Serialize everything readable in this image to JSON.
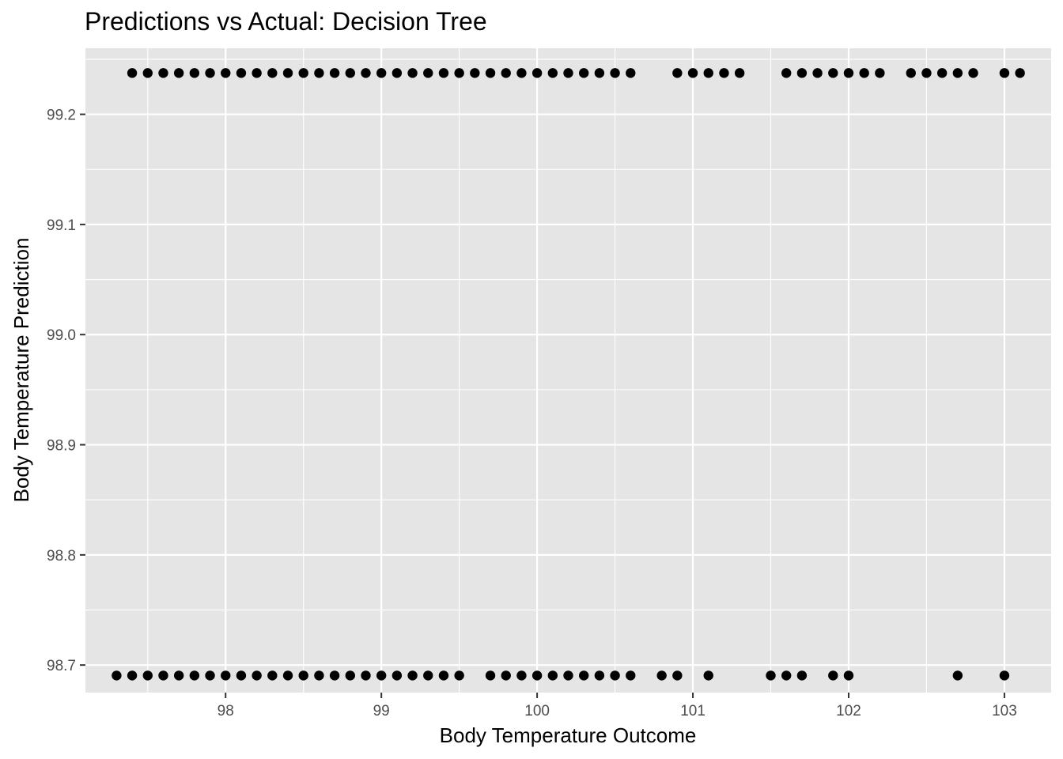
{
  "chart_data": {
    "type": "scatter",
    "title": "Predictions vs Actual: Decision Tree",
    "xlabel": "Body Temperature Outcome",
    "ylabel": "Body Temperature Prediction",
    "xlim": [
      97.1,
      103.3
    ],
    "ylim": [
      98.675,
      99.26
    ],
    "xticks": [
      98,
      99,
      100,
      101,
      102,
      103
    ],
    "yticks": [
      98.7,
      98.8,
      98.9,
      99.0,
      99.1,
      99.2
    ],
    "ytick_labels": [
      "98.7",
      "98.8",
      "98.9",
      "99.0",
      "99.1",
      "99.2"
    ],
    "grid": true,
    "legend": "none",
    "colors": {
      "panel": "#e5e5e5",
      "grid": "#ffffff",
      "point": "#000000",
      "tick_text": "#4d4d4d"
    },
    "series": [
      {
        "y": 99.2375,
        "x": [
          97.4,
          97.5,
          97.6,
          97.7,
          97.8,
          97.9,
          98.0,
          98.1,
          98.2,
          98.3,
          98.4,
          98.5,
          98.6,
          98.7,
          98.8,
          98.9,
          99.0,
          99.1,
          99.2,
          99.3,
          99.4,
          99.5,
          99.6,
          99.7,
          99.8,
          99.9,
          100.0,
          100.1,
          100.2,
          100.3,
          100.4,
          100.5,
          100.6,
          100.9,
          101.0,
          101.1,
          101.2,
          101.3,
          101.6,
          101.7,
          101.8,
          101.9,
          102.0,
          102.1,
          102.2,
          102.4,
          102.5,
          102.6,
          102.7,
          102.8,
          103.0,
          103.1
        ]
      },
      {
        "y": 98.6905,
        "x": [
          97.3,
          97.4,
          97.5,
          97.6,
          97.7,
          97.8,
          97.9,
          98.0,
          98.1,
          98.2,
          98.3,
          98.4,
          98.5,
          98.6,
          98.7,
          98.8,
          98.9,
          99.0,
          99.1,
          99.2,
          99.3,
          99.4,
          99.5,
          99.7,
          99.8,
          99.9,
          100.0,
          100.1,
          100.2,
          100.3,
          100.4,
          100.5,
          100.6,
          100.8,
          100.9,
          101.1,
          101.5,
          101.6,
          101.7,
          101.9,
          102.0,
          102.7,
          103.0
        ]
      }
    ]
  }
}
